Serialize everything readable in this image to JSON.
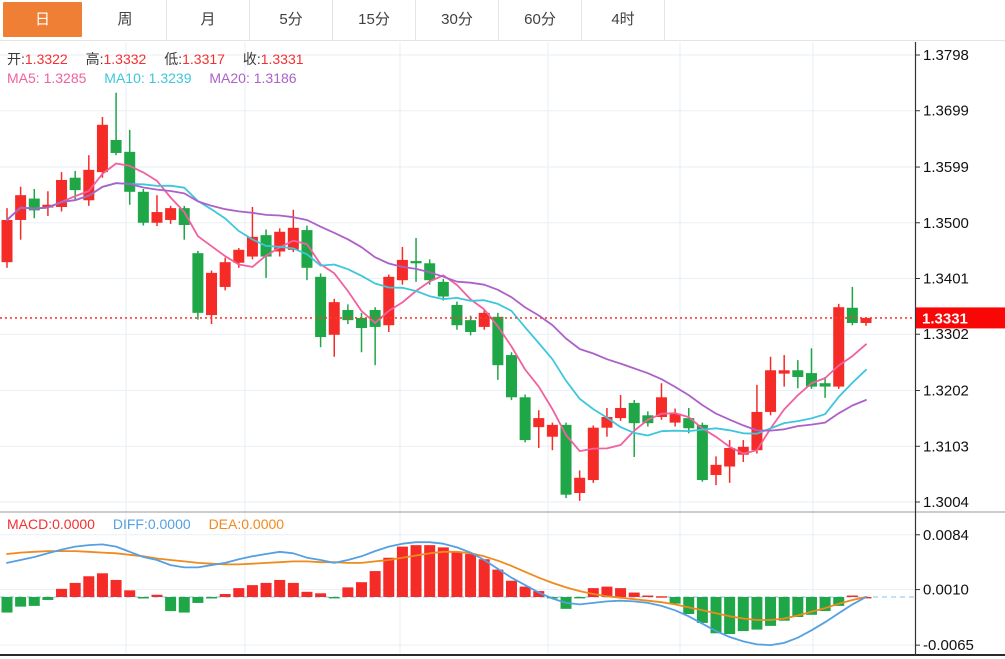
{
  "toolbar": {
    "tabs": [
      {
        "label": "日",
        "active": true
      },
      {
        "label": "周",
        "active": false
      },
      {
        "label": "月",
        "active": false
      },
      {
        "label": "5分",
        "active": false
      },
      {
        "label": "15分",
        "active": false
      },
      {
        "label": "30分",
        "active": false
      },
      {
        "label": "60分",
        "active": false
      },
      {
        "label": "4时",
        "active": false
      }
    ]
  },
  "legend": {
    "ohlc": [
      {
        "label": "开:",
        "value": "1.3322"
      },
      {
        "label": "高:",
        "value": "1.3332"
      },
      {
        "label": "低:",
        "value": "1.3317"
      },
      {
        "label": "收:",
        "value": "1.3331"
      }
    ],
    "ma": [
      {
        "label": "MA5:",
        "value": "1.3285",
        "color": "#F2609F"
      },
      {
        "label": "MA10:",
        "value": "1.3239",
        "color": "#3EC6DC"
      },
      {
        "label": "MA20:",
        "value": "1.3186",
        "color": "#AC61C8"
      }
    ],
    "macd": [
      {
        "label": "MACD:",
        "value": "0.0000",
        "color": "#F23030"
      },
      {
        "label": "DIFF:",
        "value": "0.0000",
        "color": "#55A0E2"
      },
      {
        "label": "DEA:",
        "value": "0.0000",
        "color": "#EF8A1C"
      }
    ]
  },
  "price_axis": {
    "ticks": [
      "1.3798",
      "1.3699",
      "1.3599",
      "1.3500",
      "1.3401",
      "1.3302",
      "1.3202",
      "1.3103",
      "1.3004"
    ],
    "current_label": "1.3331"
  },
  "macd_axis": {
    "ticks": [
      "0.0084",
      "0.0010",
      "-0.0065"
    ]
  },
  "colors": {
    "up": "#F52B28",
    "down": "#1EA647",
    "ma5": "#F2609F",
    "ma10": "#3EC6DC",
    "ma20": "#AC61C8",
    "diff": "#55A0E2",
    "dea": "#EF8A1C",
    "accent": "#EF7F35",
    "price_line": "#FF3A2E",
    "price_label_bg": "#F90606",
    "zero_line": "#9FCFEE",
    "grid": "#E9EFF6",
    "axis": "#333333",
    "tick_text": "#111111"
  },
  "chart_data": {
    "type": "candlestick",
    "panes": [
      "price",
      "macd"
    ],
    "grid": true,
    "legend_position": "top-left",
    "ohlc_display": {
      "open": 1.3322,
      "high": 1.3332,
      "low": 1.3317,
      "close": 1.3331
    },
    "ma_display": {
      "MA5": 1.3285,
      "MA10": 1.3239,
      "MA20": 1.3186
    },
    "ma_periods": [
      5,
      10,
      20
    ],
    "current_price": 1.3331,
    "price_ticks": [
      1.3798,
      1.3699,
      1.3599,
      1.35,
      1.3401,
      1.3302,
      1.3202,
      1.3103,
      1.3004
    ],
    "price_ylim": [
      1.2986,
      1.3821
    ],
    "candles": [
      [
        1.343,
        1.3526,
        1.342,
        1.3505
      ],
      [
        1.3505,
        1.3564,
        1.347,
        1.3549
      ],
      [
        1.3543,
        1.356,
        1.3508,
        1.3522
      ],
      [
        1.3527,
        1.3556,
        1.3512,
        1.3532
      ],
      [
        1.3528,
        1.359,
        1.352,
        1.3576
      ],
      [
        1.358,
        1.3592,
        1.354,
        1.3558
      ],
      [
        1.354,
        1.362,
        1.353,
        1.3594
      ],
      [
        1.359,
        1.3688,
        1.358,
        1.3674
      ],
      [
        1.3647,
        1.3731,
        1.362,
        1.3624
      ],
      [
        1.3626,
        1.3665,
        1.3532,
        1.3555
      ],
      [
        1.3555,
        1.356,
        1.3495,
        1.35
      ],
      [
        1.35,
        1.3549,
        1.3494,
        1.3519
      ],
      [
        1.3505,
        1.353,
        1.3498,
        1.3526
      ],
      [
        1.3526,
        1.353,
        1.347,
        1.3496
      ],
      [
        1.3446,
        1.345,
        1.3328,
        1.334
      ],
      [
        1.3336,
        1.3415,
        1.332,
        1.3411
      ],
      [
        1.3386,
        1.3438,
        1.338,
        1.343
      ],
      [
        1.3429,
        1.3455,
        1.342,
        1.3452
      ],
      [
        1.344,
        1.3528,
        1.3435,
        1.3475
      ],
      [
        1.3478,
        1.3488,
        1.3402,
        1.344
      ],
      [
        1.3449,
        1.349,
        1.344,
        1.3484
      ],
      [
        1.3452,
        1.3523,
        1.3448,
        1.3491
      ],
      [
        1.3487,
        1.3495,
        1.3398,
        1.342
      ],
      [
        1.3404,
        1.341,
        1.3279,
        1.3297
      ],
      [
        1.3301,
        1.3365,
        1.3262,
        1.3359
      ],
      [
        1.3345,
        1.3355,
        1.332,
        1.3327
      ],
      [
        1.3331,
        1.334,
        1.327,
        1.3313
      ],
      [
        1.3345,
        1.335,
        1.3247,
        1.3315
      ],
      [
        1.3318,
        1.3408,
        1.3306,
        1.3404
      ],
      [
        1.3398,
        1.3457,
        1.339,
        1.3434
      ],
      [
        1.3432,
        1.3473,
        1.3395,
        1.3428
      ],
      [
        1.3428,
        1.3435,
        1.339,
        1.3398
      ],
      [
        1.3395,
        1.34,
        1.3362,
        1.3369
      ],
      [
        1.3354,
        1.336,
        1.331,
        1.3318
      ],
      [
        1.3327,
        1.3335,
        1.33,
        1.3306
      ],
      [
        1.3315,
        1.3345,
        1.331,
        1.334
      ],
      [
        1.3333,
        1.334,
        1.3221,
        1.3247
      ],
      [
        1.3265,
        1.327,
        1.3185,
        1.319
      ],
      [
        1.319,
        1.3195,
        1.311,
        1.3114
      ],
      [
        1.3137,
        1.3167,
        1.31,
        1.3153
      ],
      [
        1.312,
        1.3145,
        1.3096,
        1.3141
      ],
      [
        1.3141,
        1.3145,
        1.3011,
        1.3017
      ],
      [
        1.302,
        1.306,
        1.3006,
        1.3047
      ],
      [
        1.3043,
        1.314,
        1.3038,
        1.3136
      ],
      [
        1.3136,
        1.3171,
        1.312,
        1.3155
      ],
      [
        1.3153,
        1.3194,
        1.3148,
        1.3171
      ],
      [
        1.318,
        1.3185,
        1.3084,
        1.3144
      ],
      [
        1.3158,
        1.3165,
        1.3138,
        1.3144
      ],
      [
        1.3155,
        1.3215,
        1.315,
        1.319
      ],
      [
        1.3145,
        1.317,
        1.3138,
        1.3161
      ],
      [
        1.3153,
        1.3171,
        1.3126,
        1.3135
      ],
      [
        1.3141,
        1.3145,
        1.304,
        1.3043
      ],
      [
        1.3052,
        1.3085,
        1.3034,
        1.307
      ],
      [
        1.3067,
        1.3114,
        1.3038,
        1.31
      ],
      [
        1.3088,
        1.3114,
        1.3075,
        1.3102
      ],
      [
        1.3096,
        1.3212,
        1.309,
        1.3164
      ],
      [
        1.3164,
        1.3262,
        1.3158,
        1.3238
      ],
      [
        1.3232,
        1.3265,
        1.3209,
        1.3238
      ],
      [
        1.3238,
        1.3256,
        1.3206,
        1.3226
      ],
      [
        1.3233,
        1.3277,
        1.3205,
        1.3209
      ],
      [
        1.3215,
        1.3226,
        1.3189,
        1.3209
      ],
      [
        1.3209,
        1.3356,
        1.3205,
        1.335
      ],
      [
        1.3349,
        1.3386,
        1.3318,
        1.3322
      ],
      [
        1.3322,
        1.3332,
        1.3317,
        1.3331
      ]
    ],
    "macd": {
      "display": {
        "MACD": 0.0,
        "DIFF": 0.0,
        "DEA": 0.0
      },
      "ticks": [
        0.0084,
        0.001,
        -0.0065
      ],
      "ylim": [
        -0.0078,
        0.0115
      ],
      "hist": [
        -0.0021,
        -0.0013,
        -0.0012,
        -0.0004,
        0.0011,
        0.0019,
        0.0028,
        0.0032,
        0.0023,
        0.0009,
        -0.0002,
        0.0003,
        -0.0019,
        -0.0021,
        -0.0008,
        -0.0002,
        0.0004,
        0.0012,
        0.0016,
        0.0019,
        0.0023,
        0.0019,
        0.0007,
        0.0005,
        -0.0001,
        0.0013,
        0.002,
        0.0035,
        0.0053,
        0.0068,
        0.007,
        0.007,
        0.0067,
        0.0061,
        0.0058,
        0.0051,
        0.0037,
        0.0022,
        0.0014,
        0.0008,
        -0.0001,
        -0.0016,
        -0.0001,
        0.0012,
        0.0014,
        0.0012,
        0.0006,
        0.0002,
        0.0001,
        -0.0009,
        -0.0023,
        -0.0035,
        -0.0049,
        -0.005,
        -0.0046,
        -0.0044,
        -0.0039,
        -0.0032,
        -0.0027,
        -0.0024,
        -0.0019,
        -0.0012,
        0.0002,
        0.0
      ],
      "diff": [
        0.0046,
        0.005,
        0.0054,
        0.0059,
        0.0064,
        0.0068,
        0.007,
        0.0071,
        0.0068,
        0.0061,
        0.0054,
        0.005,
        0.0043,
        0.004,
        0.004,
        0.0043,
        0.0046,
        0.0051,
        0.0055,
        0.0058,
        0.0061,
        0.0059,
        0.0053,
        0.005,
        0.0046,
        0.005,
        0.0055,
        0.0062,
        0.0068,
        0.0072,
        0.0074,
        0.0074,
        0.0072,
        0.0067,
        0.006,
        0.005,
        0.0038,
        0.0026,
        0.0016,
        0.0006,
        -0.0002,
        -0.0008,
        -0.001,
        -0.0008,
        -0.0006,
        -0.0005,
        -0.0006,
        -0.0008,
        -0.0012,
        -0.0018,
        -0.0026,
        -0.0036,
        -0.0046,
        -0.0054,
        -0.006,
        -0.0064,
        -0.0065,
        -0.0062,
        -0.0055,
        -0.0045,
        -0.0034,
        -0.0022,
        -0.001,
        0.0
      ],
      "dea": [
        0.0058,
        0.006,
        0.0061,
        0.0062,
        0.0062,
        0.0062,
        0.0061,
        0.006,
        0.0059,
        0.0057,
        0.0055,
        0.0052,
        0.005,
        0.0048,
        0.0046,
        0.0045,
        0.0044,
        0.0044,
        0.0045,
        0.0046,
        0.0047,
        0.0048,
        0.0048,
        0.0047,
        0.0047,
        0.0046,
        0.0046,
        0.0048,
        0.005,
        0.0053,
        0.0056,
        0.0059,
        0.0061,
        0.0061,
        0.0059,
        0.0055,
        0.0049,
        0.0042,
        0.0034,
        0.0026,
        0.0019,
        0.0013,
        0.0008,
        0.0004,
        0.0001,
        -0.0001,
        -0.0003,
        -0.0005,
        -0.0007,
        -0.001,
        -0.0014,
        -0.0018,
        -0.0022,
        -0.0026,
        -0.0029,
        -0.0031,
        -0.0031,
        -0.0029,
        -0.0025,
        -0.002,
        -0.0015,
        -0.0009,
        -0.0004,
        0.0
      ]
    }
  }
}
